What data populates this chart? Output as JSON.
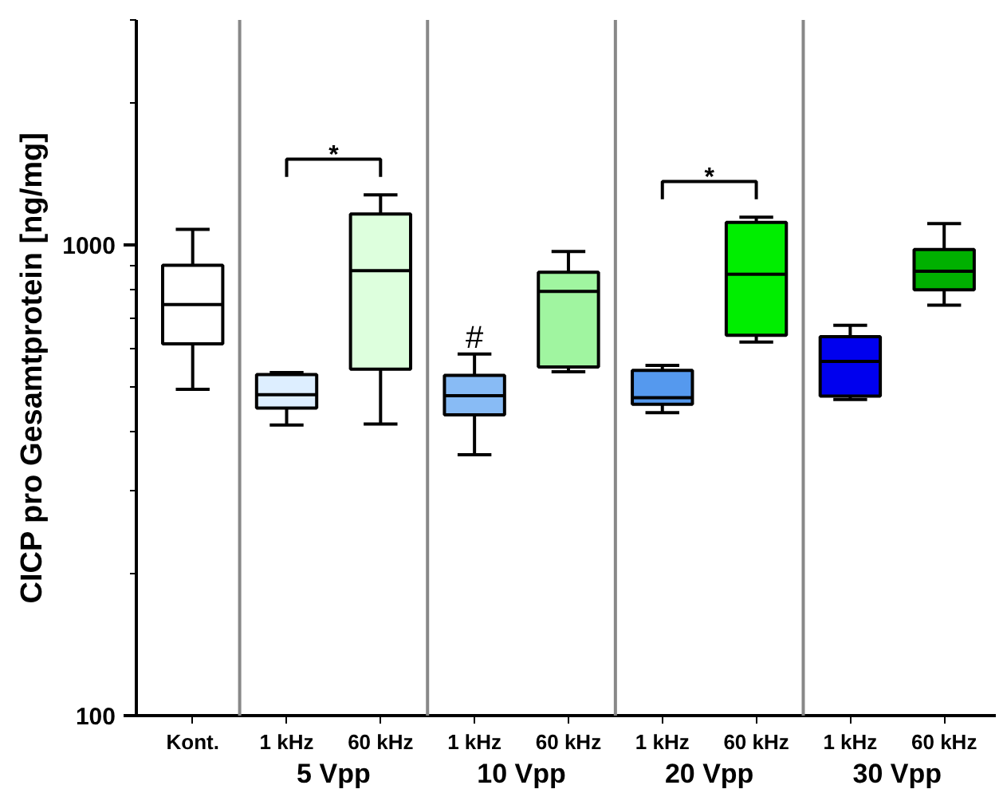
{
  "chart_data": {
    "type": "box",
    "ylabel": "CICP pro Gesamtprotein [ng/mg]",
    "categories": [
      "Kont.",
      "1 kHz",
      "60 kHz",
      "1 kHz",
      "60 kHz",
      "1 kHz",
      "60 kHz",
      "1 kHz",
      "60 kHz"
    ],
    "colors": [
      "#ffffff",
      "#ddeeff",
      "#ddffdd",
      "#88bbf5",
      "#a0f5a0",
      "#5599ee",
      "#00ee00",
      "#0000ee",
      "#00b000"
    ],
    "boxes": [
      {
        "low": 493,
        "q1": 616,
        "median": 746,
        "q3": 904,
        "high": 1078
      },
      {
        "low": 414,
        "q1": 450,
        "median": 480,
        "q3": 530,
        "high": 535
      },
      {
        "low": 416,
        "q1": 544,
        "median": 881,
        "q3": 1162,
        "high": 1276
      },
      {
        "low": 358,
        "q1": 435,
        "median": 478,
        "q3": 528,
        "high": 586
      },
      {
        "low": 537,
        "q1": 550,
        "median": 796,
        "q3": 874,
        "high": 967
      },
      {
        "low": 440,
        "q1": 458,
        "median": 473,
        "q3": 541,
        "high": 554
      },
      {
        "low": 621,
        "q1": 642,
        "median": 865,
        "q3": 1115,
        "high": 1144
      },
      {
        "low": 469,
        "q1": 477,
        "median": 565,
        "q3": 638,
        "high": 674
      },
      {
        "low": 744,
        "q1": 802,
        "median": 878,
        "q3": 977,
        "high": 1109
      }
    ],
    "log": "y",
    "ylim": [
      100,
      3000
    ],
    "yticks": [
      100,
      1000
    ],
    "grid": false,
    "annotations": [
      "*",
      "#",
      "*",
      "5 Vpp",
      "10 Vpp",
      "20 Vpp",
      "30 Vpp"
    ]
  }
}
